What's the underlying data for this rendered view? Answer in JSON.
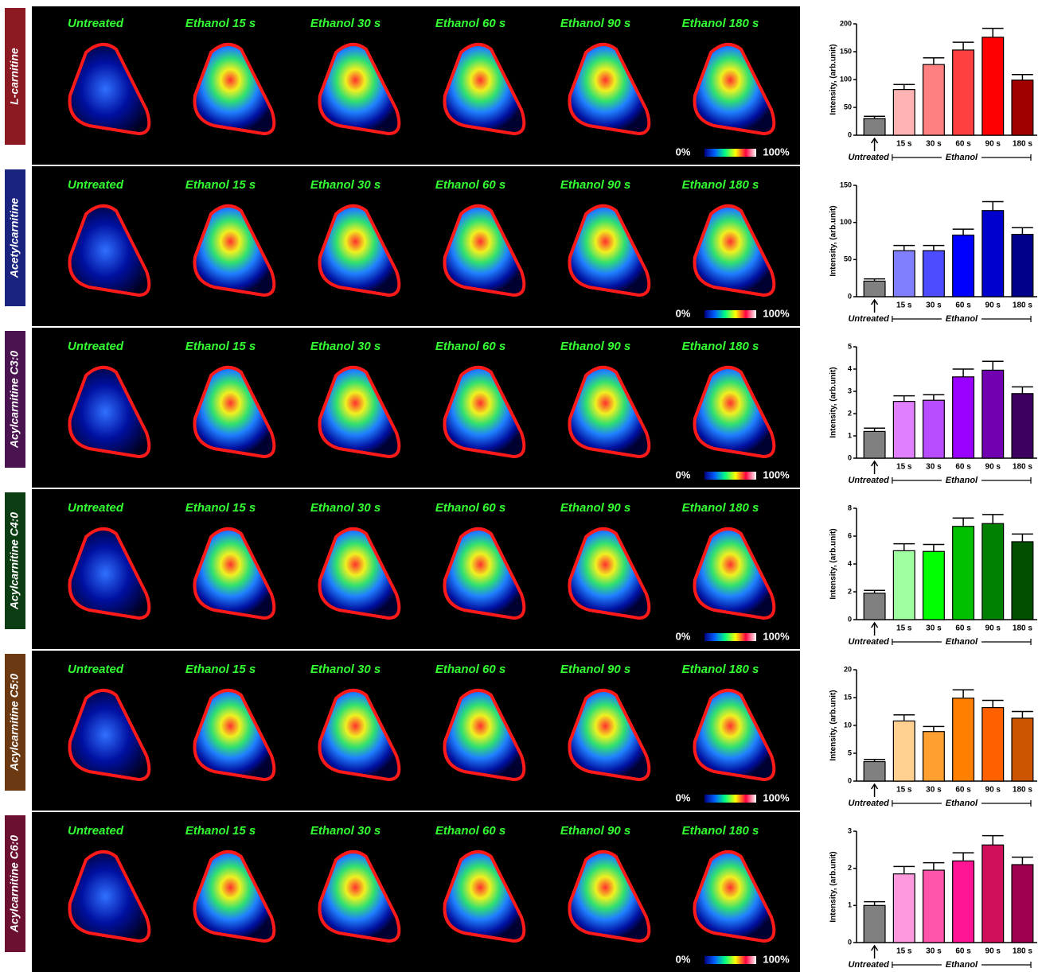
{
  "panels": {
    "row_labels": [
      "L-carnitine",
      "Acetylcarnitine",
      "Acylcarnitine C3:0",
      "Acylcarnitine C4:0",
      "Acylcarnitine C5:0",
      "Acylcarnitine C6:0"
    ],
    "row_colors": [
      "#8b1a22",
      "#1a237e",
      "#4a1450",
      "#0d3d12",
      "#6b3a12",
      "#6b1030"
    ],
    "column_labels": [
      "Untreated",
      "Ethanol  15 s",
      "Ethanol  30 s",
      "Ethanol  60 s",
      "Ethanol  90 s",
      "Ethanol  180 s"
    ],
    "scale_min": "0%",
    "scale_max": "100%"
  },
  "chart_data": [
    {
      "type": "bar",
      "ylabel": "Intensity, (arb.unit)",
      "categories": [
        null,
        "15 s",
        "30 s",
        "60 s",
        "90 s",
        "180 s"
      ],
      "values": [
        30,
        82,
        127,
        153,
        176,
        99
      ],
      "errors": [
        4,
        9,
        12,
        14,
        16,
        10
      ],
      "colors": [
        "#808080",
        "#ffb3b3",
        "#ff8080",
        "#ff4040",
        "#ff0000",
        "#a00000"
      ],
      "ylim": [
        0,
        200
      ],
      "yticks": [
        0,
        50,
        100,
        150,
        200
      ],
      "untreated_label": "Untreated",
      "group_label": "Ethanol"
    },
    {
      "type": "bar",
      "ylabel": "Intensity, (arb.unit)",
      "categories": [
        null,
        "15 s",
        "30 s",
        "60 s",
        "90 s",
        "180 s"
      ],
      "values": [
        21,
        62,
        62,
        83,
        116,
        84
      ],
      "errors": [
        3,
        7,
        7,
        8,
        12,
        9
      ],
      "colors": [
        "#808080",
        "#8080ff",
        "#4d4dff",
        "#0000ff",
        "#0000cc",
        "#00008b"
      ],
      "ylim": [
        0,
        150
      ],
      "yticks": [
        0,
        50,
        100,
        150
      ],
      "untreated_label": "Untreated",
      "group_label": "Ethanol"
    },
    {
      "type": "bar",
      "ylabel": "Intensity, (arb.unit)",
      "categories": [
        null,
        "15 s",
        "30 s",
        "60 s",
        "90 s",
        "180 s"
      ],
      "values": [
        1.2,
        2.55,
        2.6,
        3.65,
        3.95,
        2.9
      ],
      "errors": [
        0.15,
        0.25,
        0.25,
        0.35,
        0.4,
        0.3
      ],
      "colors": [
        "#808080",
        "#e080ff",
        "#b84dff",
        "#9900ff",
        "#7000b0",
        "#3d0060"
      ],
      "ylim": [
        0,
        5
      ],
      "yticks": [
        0,
        1,
        2,
        3,
        4,
        5
      ],
      "untreated_label": "Untreated",
      "group_label": "Ethanol"
    },
    {
      "type": "bar",
      "ylabel": "Intensity, (arb.unit)",
      "categories": [
        null,
        "15 s",
        "30 s",
        "60 s",
        "90 s",
        "180 s"
      ],
      "values": [
        1.9,
        4.95,
        4.9,
        6.7,
        6.9,
        5.6
      ],
      "errors": [
        0.2,
        0.5,
        0.5,
        0.6,
        0.65,
        0.55
      ],
      "colors": [
        "#808080",
        "#a0ffa0",
        "#00ff00",
        "#00c000",
        "#008000",
        "#005000"
      ],
      "ylim": [
        0,
        8
      ],
      "yticks": [
        0,
        2,
        4,
        6,
        8
      ],
      "untreated_label": "Untreated",
      "group_label": "Ethanol"
    },
    {
      "type": "bar",
      "ylabel": "Intensity, (arb.unit)",
      "categories": [
        null,
        "15 s",
        "30 s",
        "60 s",
        "90 s",
        "180 s"
      ],
      "values": [
        3.5,
        10.8,
        8.9,
        14.9,
        13.2,
        11.3
      ],
      "errors": [
        0.4,
        1.1,
        0.9,
        1.5,
        1.3,
        1.2
      ],
      "colors": [
        "#808080",
        "#ffd090",
        "#ffa030",
        "#ff8000",
        "#ff6000",
        "#cc5500"
      ],
      "ylim": [
        0,
        20
      ],
      "yticks": [
        0,
        5,
        10,
        15,
        20
      ],
      "untreated_label": "Untreated",
      "group_label": "Ethanol"
    },
    {
      "type": "bar",
      "ylabel": "Intensity, (arb.unit)",
      "categories": [
        null,
        "15 s",
        "30 s",
        "60 s",
        "90 s",
        "180 s"
      ],
      "values": [
        1.0,
        1.85,
        1.95,
        2.2,
        2.63,
        2.1
      ],
      "errors": [
        0.1,
        0.2,
        0.2,
        0.22,
        0.25,
        0.2
      ],
      "colors": [
        "#808080",
        "#ff99dd",
        "#ff55aa",
        "#ff1493",
        "#d0105a",
        "#a00050"
      ],
      "ylim": [
        0,
        3
      ],
      "yticks": [
        0,
        1,
        2,
        3
      ],
      "untreated_label": "Untreated",
      "group_label": "Ethanol"
    }
  ]
}
